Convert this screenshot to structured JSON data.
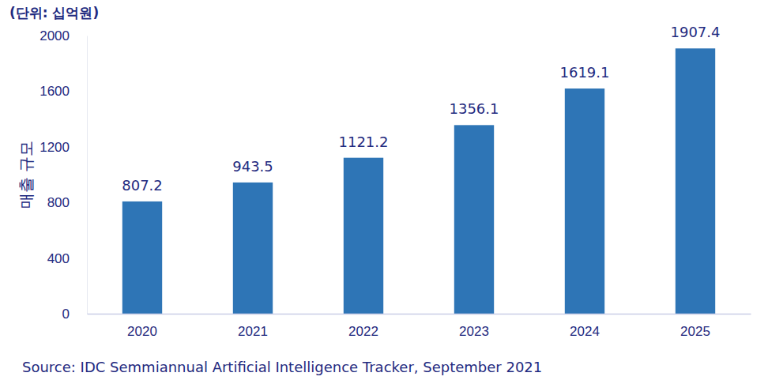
{
  "chart_data": {
    "type": "bar",
    "subtitle": "(단위: 십억원)",
    "y_label": "매출 규모",
    "source": "Source: IDC Semmiannual Artificial Intelligence Tracker, September 2021",
    "categories": [
      "2020",
      "2021",
      "2022",
      "2023",
      "2024",
      "2025"
    ],
    "values": [
      807.2,
      943.5,
      1121.2,
      1356.1,
      1619.1,
      1907.4
    ],
    "color": "#2e75b6",
    "ylim": [
      0,
      2000
    ],
    "yticks": [
      0,
      400,
      800,
      1200,
      1600,
      2000
    ],
    "grid": false,
    "data_labels": true
  }
}
